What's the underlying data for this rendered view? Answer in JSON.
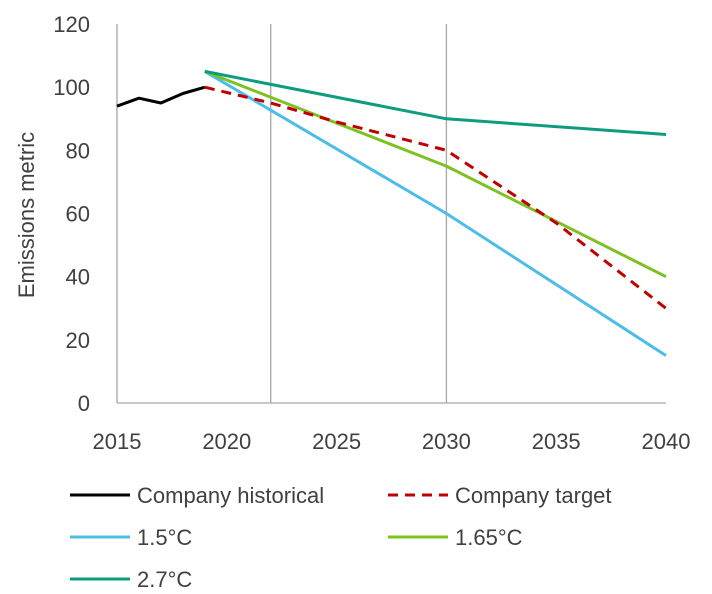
{
  "chart_data": {
    "type": "line",
    "title": "",
    "xlabel": "",
    "ylabel": "Emissions metric",
    "xlim": [
      2015,
      2040
    ],
    "ylim": [
      0,
      120
    ],
    "x_ticks": [
      2015,
      2020,
      2025,
      2030,
      2035,
      2040
    ],
    "x_tick_labels": [
      "2015",
      "2020",
      "2025",
      "2030",
      "2035",
      "2040"
    ],
    "y_ticks": [
      0,
      20,
      40,
      60,
      80,
      100,
      120
    ],
    "y_tick_labels": [
      "0",
      "20",
      "40",
      "60",
      "80",
      "100",
      "120"
    ],
    "vertical_reference_lines": [
      2022,
      2030
    ],
    "grid": false,
    "legend_position": "bottom",
    "series": [
      {
        "name": "Company historical",
        "color": "#000000",
        "dash": "solid",
        "points": [
          [
            2015,
            94
          ],
          [
            2016,
            96.5
          ],
          [
            2017,
            95
          ],
          [
            2018,
            98
          ],
          [
            2019,
            100
          ]
        ]
      },
      {
        "name": "Company target",
        "color": "#c00000",
        "dash": "dashed",
        "points": [
          [
            2019,
            100
          ],
          [
            2022,
            95
          ],
          [
            2025,
            89
          ],
          [
            2030,
            80
          ],
          [
            2035,
            57
          ],
          [
            2040,
            30
          ]
        ]
      },
      {
        "name": "1.5°C",
        "color": "#4dbde8",
        "dash": "solid",
        "points": [
          [
            2019,
            105
          ],
          [
            2030,
            60
          ],
          [
            2040,
            15
          ]
        ]
      },
      {
        "name": "1.65°C",
        "color": "#7dc222",
        "dash": "solid",
        "points": [
          [
            2019,
            105
          ],
          [
            2030,
            75
          ],
          [
            2040,
            40
          ]
        ]
      },
      {
        "name": "2.7°C",
        "color": "#0e9c80",
        "dash": "solid",
        "points": [
          [
            2019,
            105
          ],
          [
            2030,
            90
          ],
          [
            2040,
            85
          ]
        ]
      }
    ],
    "legend": [
      "Company historical",
      "Company target",
      "1.5°C",
      "1.65°C",
      "2.7°C"
    ]
  }
}
